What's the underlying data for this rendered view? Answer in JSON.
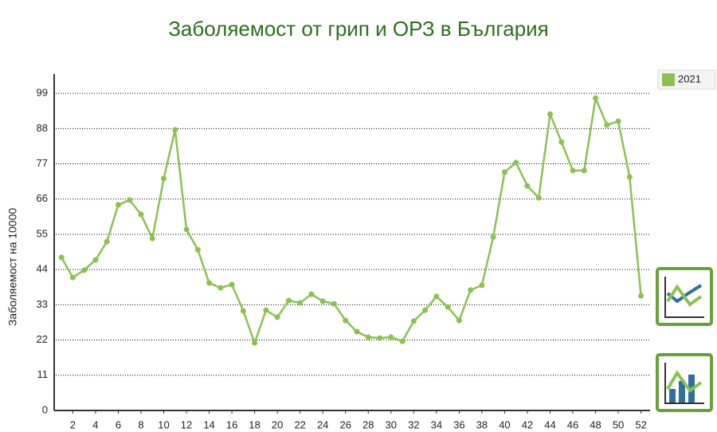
{
  "chart_data": {
    "type": "line",
    "title": "Заболяемост от грип и ОРЗ в България",
    "y_label": "Заболяемост на 10000",
    "x": [
      1,
      2,
      3,
      4,
      5,
      6,
      7,
      8,
      9,
      10,
      11,
      12,
      13,
      14,
      15,
      16,
      17,
      18,
      19,
      20,
      21,
      22,
      23,
      24,
      25,
      26,
      27,
      28,
      29,
      30,
      31,
      32,
      33,
      34,
      35,
      36,
      37,
      38,
      39,
      40,
      41,
      42,
      43,
      44,
      45,
      46,
      47,
      48,
      49,
      50,
      51,
      52
    ],
    "series": [
      {
        "name": "2021",
        "color": "#8cc152",
        "values": [
          47.8,
          41.5,
          43.8,
          47.0,
          52.7,
          64.2,
          65.7,
          61.2,
          53.7,
          72.4,
          87.6,
          56.5,
          50.2,
          39.8,
          38.3,
          39.3,
          31.1,
          21.1,
          31.3,
          29.1,
          34.3,
          33.6,
          36.3,
          34.1,
          33.3,
          28.1,
          24.6,
          22.9,
          22.6,
          22.9,
          21.6,
          27.9,
          31.3,
          35.6,
          32.3,
          28.1,
          37.6,
          39.1,
          54.2,
          74.4,
          77.4,
          70.1,
          66.4,
          92.5,
          83.8,
          74.9,
          74.9,
          97.5,
          89.1,
          90.3,
          72.9,
          35.8
        ]
      }
    ],
    "xlim": [
      0.5,
      52.8
    ],
    "xticks": [
      2,
      4,
      6,
      8,
      10,
      12,
      14,
      16,
      18,
      20,
      22,
      24,
      26,
      28,
      30,
      32,
      34,
      36,
      38,
      40,
      42,
      44,
      46,
      48,
      50,
      52
    ],
    "ylim": [
      0,
      105
    ],
    "yticks": [
      0,
      11,
      22,
      33,
      44,
      55,
      66,
      77,
      88,
      99
    ],
    "grid": true,
    "legend": "top-right"
  }
}
